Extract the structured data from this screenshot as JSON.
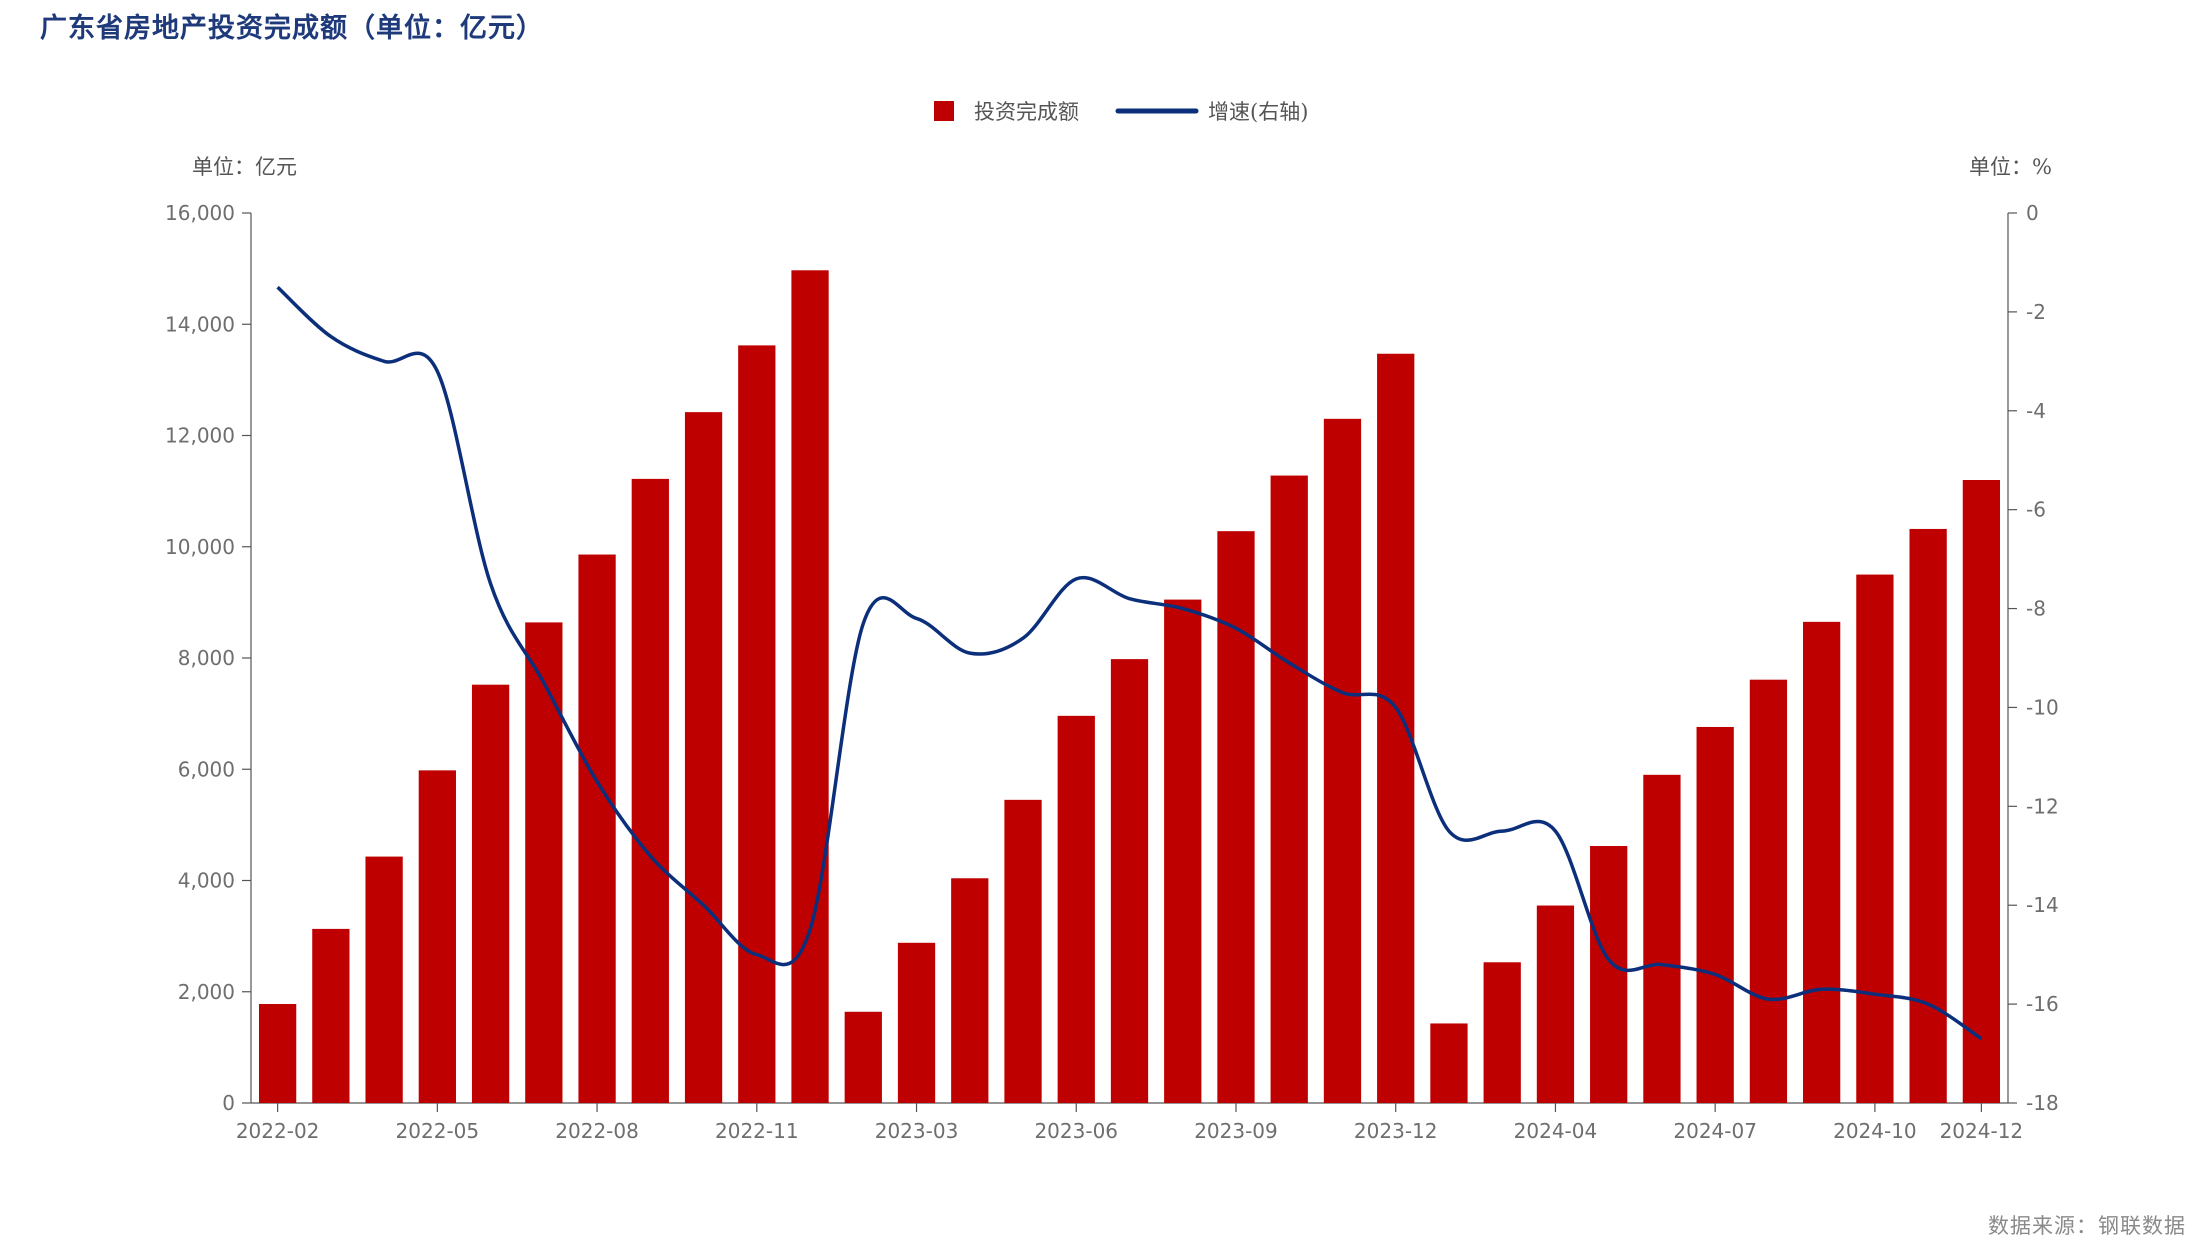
{
  "title": "广东省房地产投资完成额（单位：亿元）",
  "source": "数据来源：钢联数据",
  "colors": {
    "bar": "#bf0000",
    "line": "#0b2f7a",
    "axis": "#555555",
    "title": "#1f3a7a"
  },
  "chart_data": {
    "type": "bar",
    "categories": [
      "2022-02",
      "2022-03",
      "2022-04",
      "2022-05",
      "2022-06",
      "2022-07",
      "2022-08",
      "2022-09",
      "2022-10",
      "2022-11",
      "2022-12",
      "2023-02",
      "2023-03",
      "2023-04",
      "2023-05",
      "2023-06",
      "2023-07",
      "2023-08",
      "2023-09",
      "2023-10",
      "2023-11",
      "2023-12",
      "2024-02",
      "2024-03",
      "2024-04",
      "2024-05",
      "2024-06",
      "2024-07",
      "2024-08",
      "2024-09",
      "2024-10",
      "2024-11",
      "2024-12"
    ],
    "x_tick_labels": [
      "2022-02",
      "2022-05",
      "2022-08",
      "2022-11",
      "2023-03",
      "2023-06",
      "2023-09",
      "2023-12",
      "2024-04",
      "2024-07",
      "2024-10",
      "2024-12"
    ],
    "series": [
      {
        "name": "投资完成额",
        "type": "bar",
        "axis": "left",
        "values": [
          1780,
          3130,
          4430,
          5980,
          7520,
          8640,
          9860,
          11220,
          12420,
          13620,
          14970,
          1640,
          2880,
          4040,
          5450,
          6960,
          7980,
          9050,
          10280,
          11280,
          12300,
          13470,
          1430,
          2530,
          3550,
          4620,
          5900,
          6760,
          7610,
          8650,
          9500,
          10320,
          11200
        ]
      },
      {
        "name": "增速(右轴)",
        "type": "line",
        "axis": "right",
        "values": [
          -1.5,
          -2.5,
          -3.0,
          -3.2,
          -7.5,
          -9.5,
          -11.5,
          -13.0,
          -14.0,
          -15.0,
          -14.5,
          -8.3,
          -8.2,
          -8.9,
          -8.6,
          -7.4,
          -7.8,
          -8.0,
          -8.4,
          -9.1,
          -9.7,
          -10.0,
          -12.5,
          -12.5,
          -12.5,
          -15.1,
          -15.2,
          -15.4,
          -15.9,
          -15.7,
          -15.8,
          -16.0,
          -16.7
        ]
      }
    ],
    "left_axis": {
      "unit": "单位：亿元",
      "min": 0,
      "max": 16000,
      "ticks": [
        "0",
        "2,000",
        "4,000",
        "6,000",
        "8,000",
        "10,000",
        "12,000",
        "14,000",
        "16,000"
      ]
    },
    "right_axis": {
      "unit": "单位：%",
      "min": -18,
      "max": 0,
      "ticks": [
        "0",
        "-2",
        "-4",
        "-6",
        "-8",
        "-10",
        "-12",
        "-14",
        "-16",
        "-18"
      ]
    },
    "legend_position": "top-center",
    "grid": false
  }
}
